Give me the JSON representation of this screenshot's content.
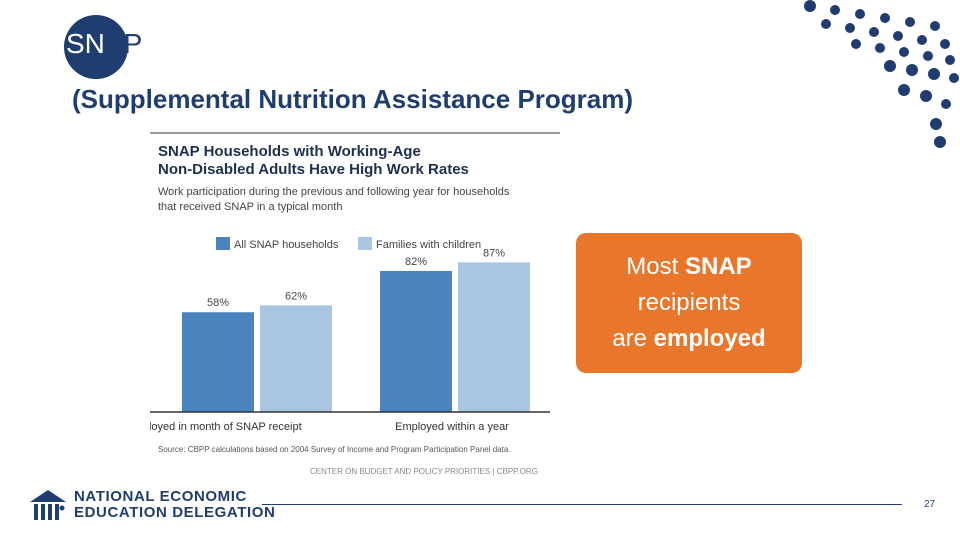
{
  "slide": {
    "title_part1": "SN",
    "title_part2": "AP",
    "subtitle": "(Supplemental Nutrition Assistance Program)",
    "callout": {
      "line1_pre": "Most ",
      "line1_bold": "SNAP",
      "line2": "recipients",
      "line3_pre": "are ",
      "line3_bold": "employed"
    },
    "page_number": "27",
    "colors": {
      "navy": "#1f3d6e",
      "orange": "#e8762b",
      "series1": "#4a83bd",
      "series2": "#a8c6e2"
    }
  },
  "organization": {
    "line1": "NATIONAL ECONOMIC",
    "line2": "EDUCATION DELEGATION"
  },
  "chart_data": {
    "type": "bar",
    "title_line1": "SNAP Households with Working-Age",
    "title_line2": "Non-Disabled Adults Have High Work Rates",
    "subtitle_line1": "Work participation during the previous and following year for households",
    "subtitle_line2": "that received SNAP in a typical month",
    "categories": [
      "Employed in month of SNAP receipt",
      "Employed within a year"
    ],
    "series": [
      {
        "name": "All SNAP households",
        "values": [
          58,
          82
        ],
        "labels": [
          "58%",
          "82%"
        ]
      },
      {
        "name": "Families with children",
        "values": [
          62,
          87
        ],
        "labels": [
          "62%",
          "87%"
        ]
      }
    ],
    "ylim": [
      0,
      100
    ],
    "source": "Source: CBPP calculations based on 2004 Survey of Income and Program Participation Panel data.",
    "credit": "CENTER ON BUDGET AND POLICY PRIORITIES | CBPP.ORG"
  }
}
